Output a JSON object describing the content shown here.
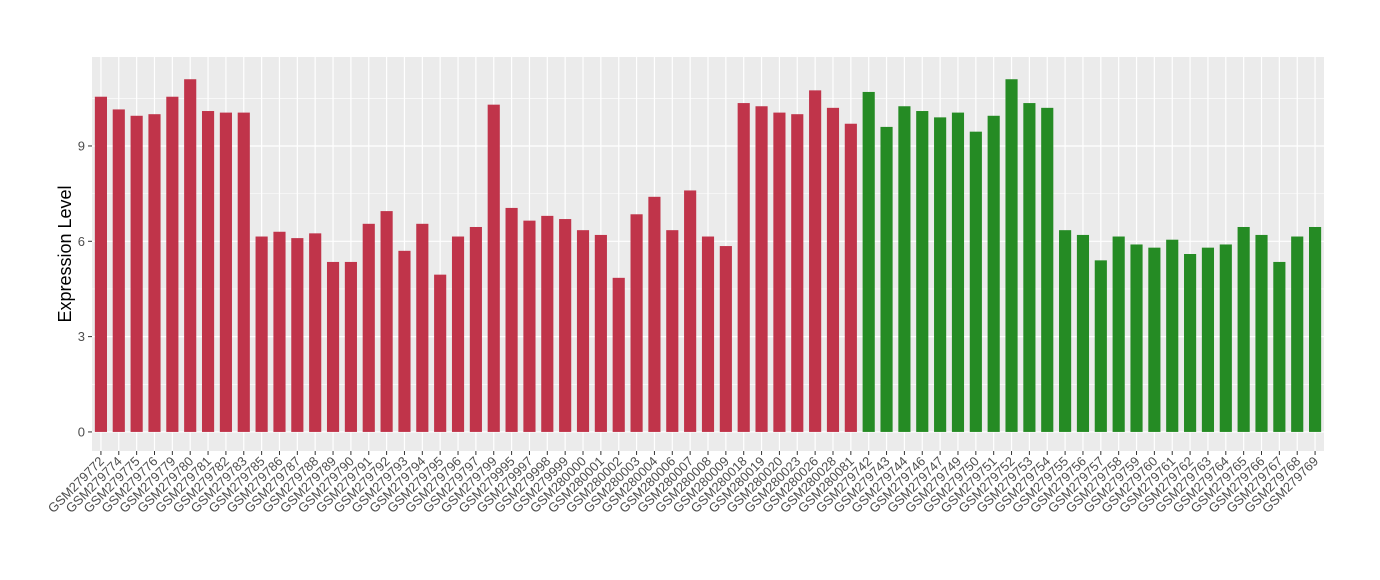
{
  "chart_data": {
    "type": "bar",
    "title": "",
    "xlabel": "",
    "ylabel": "Expression Level",
    "ylim": [
      -0.6,
      11.8
    ],
    "yticks": [
      0,
      3,
      6,
      9
    ],
    "grid": true,
    "legend": "none",
    "colors": {
      "group1": "#c0344a",
      "group2": "#258b24",
      "panel": "#ebebeb",
      "grid": "#ffffff"
    },
    "categories": [
      "GSM279772",
      "GSM279774",
      "GSM279775",
      "GSM279776",
      "GSM279779",
      "GSM279780",
      "GSM279781",
      "GSM279782",
      "GSM279783",
      "GSM279785",
      "GSM279786",
      "GSM279787",
      "GSM279788",
      "GSM279789",
      "GSM279790",
      "GSM279791",
      "GSM279792",
      "GSM279793",
      "GSM279794",
      "GSM279795",
      "GSM279796",
      "GSM279797",
      "GSM279799",
      "GSM279995",
      "GSM279997",
      "GSM279998",
      "GSM279999",
      "GSM280000",
      "GSM280001",
      "GSM280002",
      "GSM280003",
      "GSM280004",
      "GSM280006",
      "GSM280007",
      "GSM280008",
      "GSM280009",
      "GSM280018",
      "GSM280019",
      "GSM280020",
      "GSM280023",
      "GSM280026",
      "GSM280028",
      "GSM280081",
      "GSM279742",
      "GSM279743",
      "GSM279744",
      "GSM279746",
      "GSM279747",
      "GSM279749",
      "GSM279750",
      "GSM279751",
      "GSM279752",
      "GSM279753",
      "GSM279754",
      "GSM279755",
      "GSM279756",
      "GSM279757",
      "GSM279758",
      "GSM279759",
      "GSM279760",
      "GSM279761",
      "GSM279762",
      "GSM279763",
      "GSM279764",
      "GSM279765",
      "GSM279766",
      "GSM279767",
      "GSM279768",
      "GSM279769"
    ],
    "values": [
      10.55,
      10.15,
      9.95,
      10.0,
      10.55,
      11.1,
      10.1,
      10.05,
      10.05,
      6.15,
      6.3,
      6.1,
      6.25,
      5.35,
      5.35,
      6.55,
      6.95,
      5.7,
      6.55,
      4.95,
      6.15,
      6.45,
      10.3,
      7.05,
      6.65,
      6.8,
      6.7,
      6.35,
      6.2,
      4.85,
      6.85,
      7.4,
      6.35,
      7.6,
      6.15,
      5.85,
      10.35,
      10.25,
      10.05,
      10.0,
      10.75,
      10.2,
      9.7,
      10.7,
      9.6,
      10.25,
      10.1,
      9.9,
      10.05,
      9.45,
      9.95,
      11.1,
      10.35,
      10.2,
      6.35,
      6.2,
      5.4,
      6.15,
      5.9,
      5.8,
      6.05,
      5.6,
      5.8,
      5.9,
      6.45,
      6.2,
      5.35,
      6.15,
      6.45
    ],
    "groups": [
      1,
      1,
      1,
      1,
      1,
      1,
      1,
      1,
      1,
      1,
      1,
      1,
      1,
      1,
      1,
      1,
      1,
      1,
      1,
      1,
      1,
      1,
      1,
      1,
      1,
      1,
      1,
      1,
      1,
      1,
      1,
      1,
      1,
      1,
      1,
      1,
      1,
      1,
      1,
      1,
      1,
      1,
      1,
      2,
      2,
      2,
      2,
      2,
      2,
      2,
      2,
      2,
      2,
      2,
      2,
      2,
      2,
      2,
      2,
      2,
      2,
      2,
      2,
      2,
      2,
      2,
      2,
      2,
      2
    ]
  }
}
